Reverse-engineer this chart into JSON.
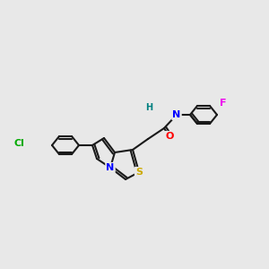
{
  "background_color": "#e8e8e8",
  "bond_color": "#1a1a1a",
  "atom_colors": {
    "N": "#0000ff",
    "S": "#ccaa00",
    "O": "#ff0000",
    "Cl": "#00aa00",
    "F": "#ee00ee",
    "HN": "#008080",
    "C": "#1a1a1a"
  },
  "figsize": [
    3.0,
    3.0
  ],
  "dpi": 100
}
